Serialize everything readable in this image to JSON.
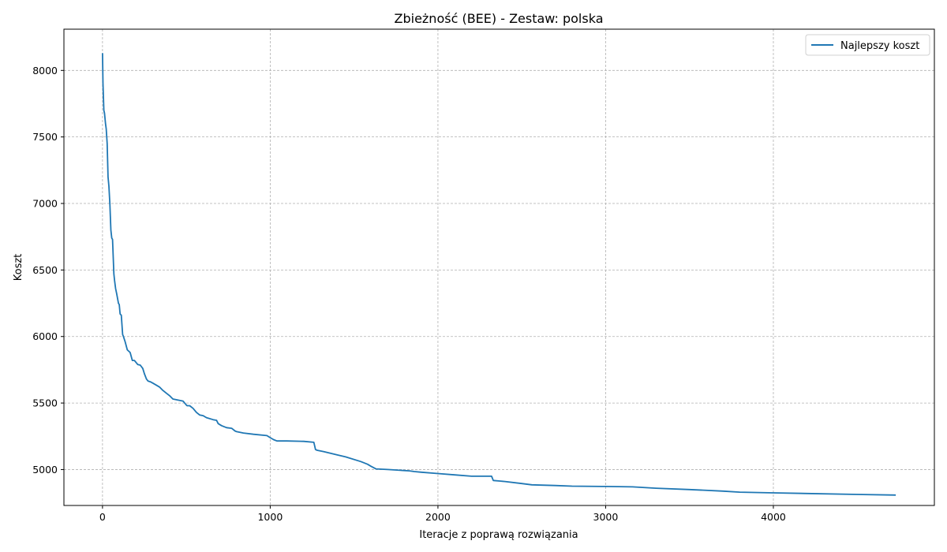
{
  "chart_data": {
    "type": "line",
    "title": "Zbieżność (BEE) - Zestaw: polska",
    "xlabel": "Iteracje z poprawą rozwiązania",
    "ylabel": "Koszt",
    "xlim": [
      -230,
      4960
    ],
    "ylim": [
      4730,
      8310
    ],
    "xticks": [
      0,
      1000,
      2000,
      3000,
      4000
    ],
    "yticks": [
      5000,
      5500,
      6000,
      6500,
      7000,
      7500,
      8000
    ],
    "grid": true,
    "legend_position": "upper right",
    "series": [
      {
        "name": "Najlepszy koszt",
        "color": "#1f77b4",
        "x": [
          0,
          3,
          8,
          12,
          18,
          22,
          28,
          33,
          38,
          44,
          50,
          55,
          60,
          68,
          72,
          78,
          85,
          95,
          100,
          105,
          112,
          120,
          125,
          135,
          148,
          165,
          178,
          190,
          210,
          225,
          240,
          250,
          262,
          272,
          285,
          300,
          320,
          340,
          360,
          380,
          400,
          420,
          440,
          460,
          480,
          500,
          505,
          520,
          540,
          560,
          580,
          600,
          620,
          660,
          680,
          690,
          710,
          740,
          770,
          790,
          800,
          820,
          840,
          900,
          980,
          1000,
          1020,
          1040,
          1100,
          1200,
          1260,
          1270,
          1280,
          1320,
          1400,
          1450,
          1540,
          1580,
          1600,
          1630,
          1700,
          1830,
          1860,
          1900,
          2000,
          2100,
          2200,
          2320,
          2330,
          2400,
          2500,
          2560,
          2700,
          2800,
          3000,
          3160,
          3300,
          3500,
          3700,
          3800,
          4000,
          4200,
          4500,
          4730
        ],
        "y": [
          8130,
          7900,
          7700,
          7680,
          7600,
          7560,
          7450,
          7200,
          7130,
          7000,
          6800,
          6740,
          6730,
          6470,
          6420,
          6360,
          6320,
          6250,
          6240,
          6170,
          6160,
          6015,
          6000,
          5960,
          5900,
          5880,
          5820,
          5820,
          5790,
          5785,
          5760,
          5720,
          5680,
          5665,
          5660,
          5650,
          5635,
          5620,
          5595,
          5575,
          5555,
          5530,
          5525,
          5520,
          5515,
          5485,
          5480,
          5480,
          5460,
          5430,
          5410,
          5405,
          5390,
          5375,
          5370,
          5345,
          5330,
          5315,
          5310,
          5290,
          5285,
          5280,
          5275,
          5265,
          5255,
          5240,
          5225,
          5215,
          5215,
          5212,
          5205,
          5150,
          5145,
          5135,
          5110,
          5095,
          5060,
          5040,
          5025,
          5005,
          5000,
          4990,
          4985,
          4980,
          4970,
          4960,
          4950,
          4950,
          4918,
          4910,
          4895,
          4885,
          4880,
          4875,
          4873,
          4870,
          4860,
          4850,
          4838,
          4830,
          4825,
          4820,
          4813,
          4808
        ]
      }
    ]
  }
}
